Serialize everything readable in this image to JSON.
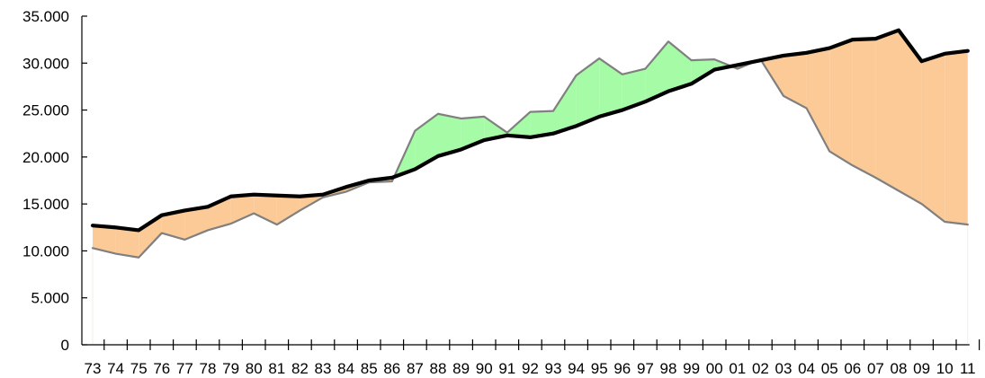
{
  "chart_data": {
    "type": "line",
    "title": "",
    "xlabel": "",
    "ylabel": "",
    "ylim": [
      0,
      35000
    ],
    "yticks": [
      {
        "value": 0,
        "label": "0"
      },
      {
        "value": 5000,
        "label": "5.000"
      },
      {
        "value": 10000,
        "label": "10.000"
      },
      {
        "value": 15000,
        "label": "15.000"
      },
      {
        "value": 20000,
        "label": "20.000"
      },
      {
        "value": 25000,
        "label": "25.000"
      },
      {
        "value": 30000,
        "label": "30.000"
      },
      {
        "value": 35000,
        "label": "35.000"
      }
    ],
    "categories": [
      "73",
      "74",
      "75",
      "76",
      "77",
      "78",
      "79",
      "80",
      "81",
      "82",
      "83",
      "84",
      "85",
      "86",
      "87",
      "88",
      "89",
      "90",
      "91",
      "92",
      "93",
      "94",
      "95",
      "96",
      "97",
      "98",
      "99",
      "00",
      "01",
      "02",
      "03",
      "04",
      "05",
      "06",
      "07",
      "08",
      "09",
      "10",
      "11"
    ],
    "series": [
      {
        "values": [
          12700,
          12500,
          12200,
          13800,
          14300,
          14700,
          15800,
          16000,
          15900,
          15800,
          16000,
          16800,
          17500,
          17800,
          18700,
          20100,
          20800,
          21800,
          22300,
          22100,
          22500,
          23300,
          24300,
          25000,
          25900,
          27000,
          27800,
          29300,
          29800,
          30300,
          30800,
          31100,
          31600,
          32500,
          32600,
          33500,
          30200,
          31000,
          31300
        ],
        "color": "#000000"
      },
      {
        "values": [
          10300,
          9700,
          9300,
          11900,
          11200,
          12200,
          12900,
          14000,
          12800,
          14300,
          15700,
          16300,
          17300,
          17400,
          22800,
          24600,
          24100,
          24300,
          22600,
          24800,
          24900,
          28700,
          30500,
          28800,
          29400,
          32300,
          30300,
          30400,
          29400,
          30400,
          26500,
          25200,
          20600,
          19100,
          17800,
          16400,
          15000,
          13100,
          12800
        ],
        "color": "#808080"
      }
    ],
    "fill_colors": {
      "black_above": "#fcca96",
      "gray_above": "#a6fca6"
    },
    "grid": false,
    "legend": "none"
  }
}
